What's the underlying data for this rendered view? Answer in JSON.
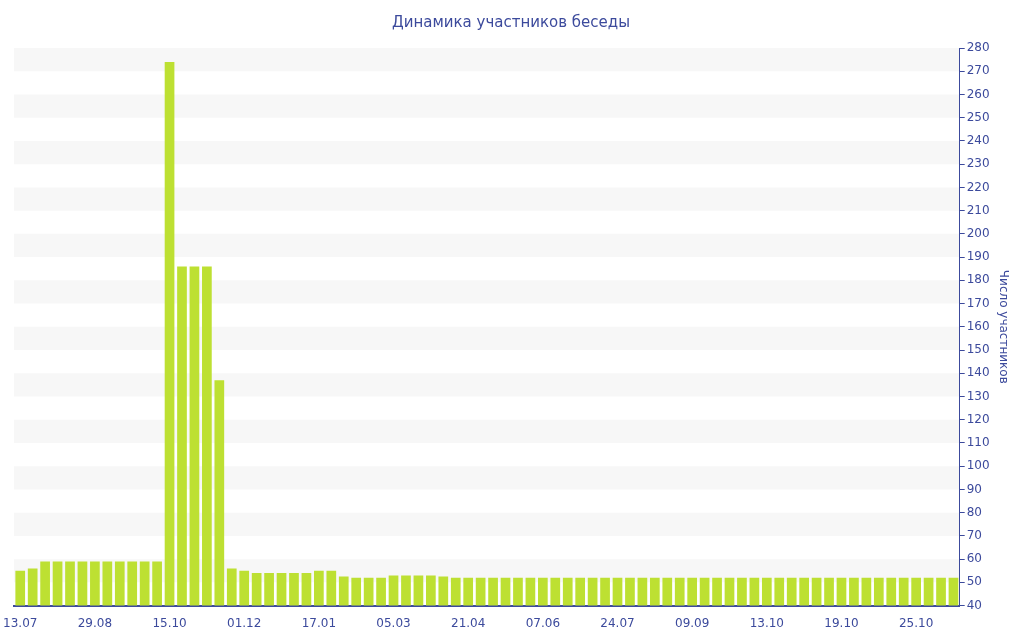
{
  "chart_data": {
    "type": "bar",
    "title": "Динамика участников беседы",
    "ylabel": "Число участников",
    "categories": [
      "13.07",
      null,
      null,
      null,
      null,
      null,
      "29.08",
      null,
      null,
      null,
      null,
      null,
      "15.10",
      null,
      null,
      null,
      null,
      null,
      "01.12",
      null,
      null,
      null,
      null,
      null,
      "17.01",
      null,
      null,
      null,
      null,
      null,
      "05.03",
      null,
      null,
      null,
      null,
      null,
      "21.04",
      null,
      null,
      null,
      null,
      null,
      "07.06",
      null,
      null,
      null,
      null,
      null,
      "24.07",
      null,
      null,
      null,
      null,
      null,
      "09.09",
      null,
      null,
      null,
      null,
      null,
      "13.10",
      null,
      null,
      null,
      null,
      null,
      "19.10",
      null,
      null,
      null,
      null,
      null,
      "25.10",
      null,
      null,
      null
    ],
    "values": [
      55,
      56,
      59,
      59,
      59,
      59,
      59,
      59,
      59,
      59,
      59,
      59,
      274,
      186,
      186,
      186,
      137,
      56,
      55,
      54,
      54,
      54,
      54,
      54,
      55,
      55,
      52.5,
      52,
      52,
      52,
      53,
      53,
      53,
      53,
      52.5,
      52,
      52,
      52,
      52,
      52,
      52,
      52,
      52,
      52,
      52,
      52,
      52,
      52,
      52,
      52,
      52,
      52,
      52,
      52,
      52,
      52,
      52,
      52,
      52,
      52,
      52,
      52,
      52,
      52,
      52,
      52,
      52,
      52,
      52,
      52,
      52,
      52,
      52,
      52,
      52,
      52
    ],
    "color": "#bde032",
    "ylim": [
      40,
      280
    ],
    "yticks": [
      40,
      50,
      60,
      70,
      80,
      90,
      100,
      110,
      120,
      130,
      140,
      150,
      160,
      170,
      180,
      190,
      200,
      210,
      220,
      230,
      240,
      250,
      260,
      270,
      280
    ],
    "legend": false
  }
}
